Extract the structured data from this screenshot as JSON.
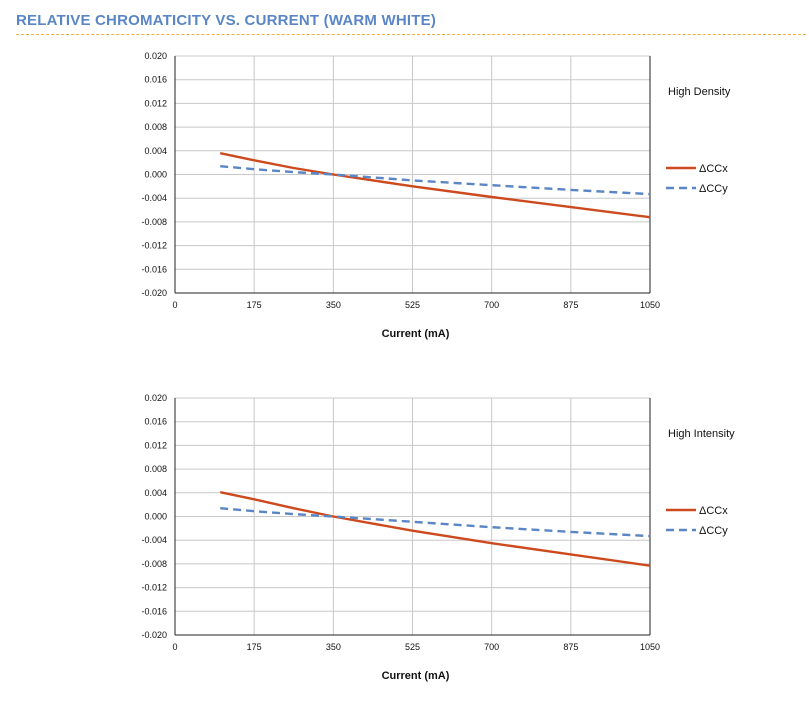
{
  "page": {
    "title": "RELATIVE CHROMATICITY VS. CURRENT (WARM WHITE)"
  },
  "colors": {
    "title": "#5b86c5",
    "rule": "#f2b33d",
    "ccx": "#cc4a1e",
    "ccy": "#5b86c5",
    "grid": "#c8c8c8",
    "axis": "#222222"
  },
  "chart_data": [
    {
      "type": "line",
      "panel_label": "High Density",
      "xlabel": "Current (mA)",
      "ylabel": "",
      "xlim": [
        0,
        1050
      ],
      "ylim": [
        -0.02,
        0.02
      ],
      "x_ticks": [
        "0",
        "175",
        "350",
        "525",
        "700",
        "875",
        "1050"
      ],
      "y_ticks": [
        "0.020",
        "0.016",
        "0.012",
        "0.008",
        "0.004",
        "0.000",
        "-0.004",
        "-0.008",
        "-0.012",
        "-0.016",
        "-0.020"
      ],
      "grid": true,
      "legend_position": "right",
      "series": [
        {
          "name": "ΔCCx",
          "style": "solid",
          "x": [
            100,
            175,
            262,
            350,
            525,
            700,
            875,
            1050
          ],
          "y": [
            0.0036,
            0.0024,
            0.0011,
            0.0,
            -0.002,
            -0.0038,
            -0.0055,
            -0.0072
          ]
        },
        {
          "name": "ΔCCy",
          "style": "dashed",
          "x": [
            100,
            175,
            262,
            350,
            525,
            700,
            875,
            1050
          ],
          "y": [
            0.0014,
            0.0009,
            0.0004,
            0.0,
            -0.001,
            -0.0018,
            -0.0026,
            -0.0033
          ]
        }
      ]
    },
    {
      "type": "line",
      "panel_label": "High Intensity",
      "xlabel": "Current (mA)",
      "ylabel": "",
      "xlim": [
        0,
        1050
      ],
      "ylim": [
        -0.02,
        0.02
      ],
      "x_ticks": [
        "0",
        "175",
        "350",
        "525",
        "700",
        "875",
        "1050"
      ],
      "y_ticks": [
        "0.020",
        "0.016",
        "0.012",
        "0.008",
        "0.004",
        "0.000",
        "-0.004",
        "-0.008",
        "-0.012",
        "-0.016",
        "-0.020"
      ],
      "grid": true,
      "legend_position": "right",
      "series": [
        {
          "name": "ΔCCx",
          "style": "solid",
          "x": [
            100,
            175,
            262,
            350,
            525,
            700,
            875,
            1050
          ],
          "y": [
            0.0041,
            0.0029,
            0.0014,
            0.0,
            -0.0024,
            -0.0045,
            -0.0064,
            -0.0083
          ]
        },
        {
          "name": "ΔCCy",
          "style": "dashed",
          "x": [
            100,
            175,
            262,
            350,
            525,
            700,
            875,
            1050
          ],
          "y": [
            0.0014,
            0.0009,
            0.0004,
            0.0,
            -0.0009,
            -0.0018,
            -0.0026,
            -0.0033
          ]
        }
      ]
    }
  ]
}
